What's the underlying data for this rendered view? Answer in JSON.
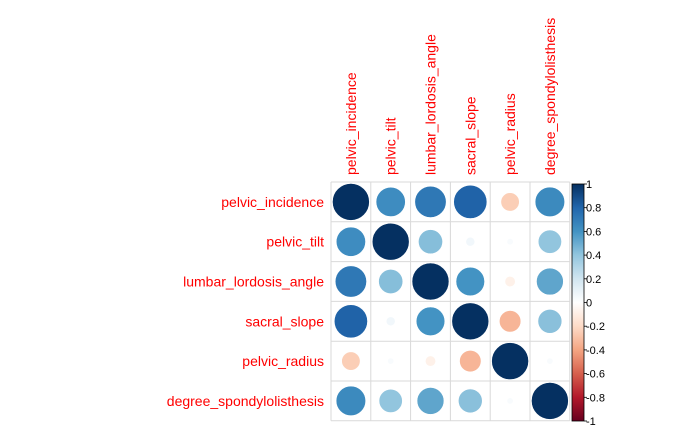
{
  "chart_data": {
    "type": "heatmap",
    "variables": [
      "pelvic_incidence",
      "pelvic_tilt",
      "lumbar_lordosis_angle",
      "sacral_slope",
      "pelvic_radius",
      "degree_spondylolisthesis"
    ],
    "matrix": [
      [
        1.0,
        0.63,
        0.72,
        0.81,
        -0.25,
        0.64
      ],
      [
        0.63,
        1.0,
        0.43,
        0.06,
        0.03,
        0.4
      ],
      [
        0.72,
        0.43,
        1.0,
        0.6,
        -0.08,
        0.53
      ],
      [
        0.81,
        0.06,
        0.6,
        1.0,
        -0.34,
        0.42
      ],
      [
        -0.25,
        0.03,
        -0.08,
        -0.34,
        1.0,
        0.03
      ],
      [
        0.64,
        0.4,
        0.53,
        0.42,
        0.03,
        1.0
      ]
    ],
    "color_scale": {
      "range": [
        -1,
        1
      ],
      "ticks": [
        "-1",
        "-0.8",
        "-0.6",
        "-0.4",
        "-0.2",
        "0",
        "0.2",
        "0.4",
        "0.6",
        "0.8",
        "1"
      ],
      "colors": [
        "#67001f",
        "#b2182b",
        "#d6604d",
        "#f4a582",
        "#fddbc7",
        "#ffffff",
        "#d1e5f0",
        "#92c5de",
        "#4393c3",
        "#2166ac",
        "#053061"
      ]
    },
    "legend": "right",
    "grid": true
  }
}
